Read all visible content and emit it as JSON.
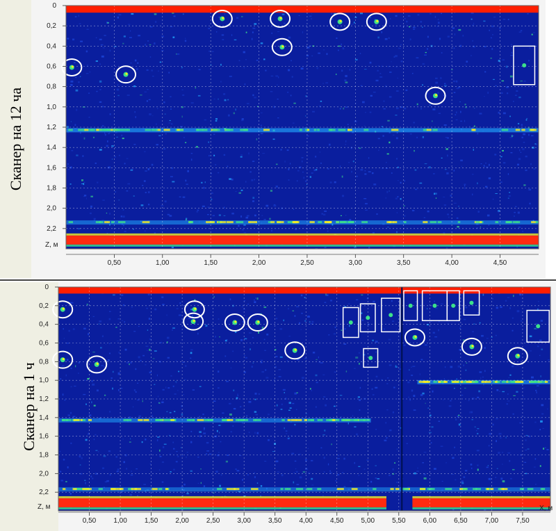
{
  "panels": [
    {
      "label": "Сканер на 12 ча",
      "chart_data": {
        "type": "heatmap",
        "z_axis_label": "Z, м",
        "x_ticks": [
          "0,50",
          "1,00",
          "1,50",
          "2,00",
          "2,50",
          "3,00",
          "3,50",
          "4,00",
          "4,50"
        ],
        "z_ticks": [
          "0",
          "0,2",
          "0,4",
          "0,6",
          "0,8",
          "1,0",
          "1,2",
          "1,4",
          "1,6",
          "1,8",
          "2,0",
          "2,2"
        ],
        "xlim": [
          0,
          4.9
        ],
        "zlim": [
          0,
          2.4
        ],
        "bands": [
          {
            "z": 1.23,
            "intensity": 0.8
          },
          {
            "z": 2.14,
            "intensity": 0.6
          }
        ],
        "circle_marks": [
          {
            "x": 0.06,
            "z": 0.61
          },
          {
            "x": 0.62,
            "z": 0.68
          },
          {
            "x": 1.62,
            "z": 0.13
          },
          {
            "x": 2.22,
            "z": 0.13
          },
          {
            "x": 2.24,
            "z": 0.41
          },
          {
            "x": 2.84,
            "z": 0.16
          },
          {
            "x": 3.22,
            "z": 0.16
          },
          {
            "x": 3.83,
            "z": 0.89
          }
        ],
        "rect_marks": [
          {
            "x0": 4.64,
            "x1": 4.86,
            "z0": 0.4,
            "z1": 0.78
          }
        ]
      }
    },
    {
      "label": "Сканер на 1 ч",
      "chart_data": {
        "type": "heatmap",
        "z_axis_label": "Z, м",
        "axis_label_x": "X, м",
        "x_ticks": [
          "0,50",
          "1,00",
          "1,50",
          "2,00",
          "2,50",
          "3,00",
          "3,50",
          "4,00",
          "4,50",
          "5,00",
          "5,50",
          "6,00",
          "6,50",
          "7,00",
          "7,50"
        ],
        "z_ticks": [
          "0",
          "0,2",
          "0,4",
          "0,6",
          "0,8",
          "1,0",
          "1,2",
          "1,4",
          "1,6",
          "1,8",
          "2,0",
          "2,2"
        ],
        "xlim": [
          0,
          7.95
        ],
        "zlim": [
          0,
          2.4
        ],
        "bands": [
          {
            "z": 1.43,
            "x0": 0,
            "x1": 5.05,
            "intensity": 0.6
          },
          {
            "z": 1.02,
            "x0": 5.8,
            "x1": 7.95,
            "intensity": 0.7
          },
          {
            "z": 2.17,
            "x0": 0,
            "x1": 7.95,
            "intensity": 0.5
          }
        ],
        "circle_marks": [
          {
            "x": 0.07,
            "z": 0.24
          },
          {
            "x": 0.07,
            "z": 0.78
          },
          {
            "x": 0.62,
            "z": 0.83
          },
          {
            "x": 2.2,
            "z": 0.24
          },
          {
            "x": 2.18,
            "z": 0.37
          },
          {
            "x": 2.85,
            "z": 0.38
          },
          {
            "x": 3.22,
            "z": 0.38
          },
          {
            "x": 3.82,
            "z": 0.68
          },
          {
            "x": 5.76,
            "z": 0.54
          },
          {
            "x": 6.68,
            "z": 0.64
          },
          {
            "x": 7.42,
            "z": 0.74
          }
        ],
        "rect_marks": [
          {
            "x0": 4.6,
            "x1": 4.85,
            "z0": 0.22,
            "z1": 0.54
          },
          {
            "x0": 4.88,
            "x1": 5.12,
            "z0": 0.18,
            "z1": 0.48
          },
          {
            "x0": 5.22,
            "x1": 5.52,
            "z0": 0.12,
            "z1": 0.48
          },
          {
            "x0": 5.58,
            "x1": 5.8,
            "z0": 0.04,
            "z1": 0.36
          },
          {
            "x0": 5.88,
            "x1": 6.28,
            "z0": 0.04,
            "z1": 0.36
          },
          {
            "x0": 6.28,
            "x1": 6.48,
            "z0": 0.04,
            "z1": 0.36
          },
          {
            "x0": 6.55,
            "x1": 6.8,
            "z0": 0.04,
            "z1": 0.3
          },
          {
            "x0": 4.93,
            "x1": 5.16,
            "z0": 0.66,
            "z1": 0.86
          },
          {
            "x0": 7.57,
            "x1": 7.93,
            "z0": 0.25,
            "z1": 0.59
          }
        ]
      }
    }
  ],
  "colors": {
    "background_field": "#0a1e9e",
    "surface_band": "#ff1e00",
    "reflection_red": "#ff2a10",
    "reflection_yellow": "#f6ee20",
    "reflection_green": "#3ce08a",
    "reflection_cyan": "#22a8ff",
    "mark_white": "#ffffff"
  }
}
